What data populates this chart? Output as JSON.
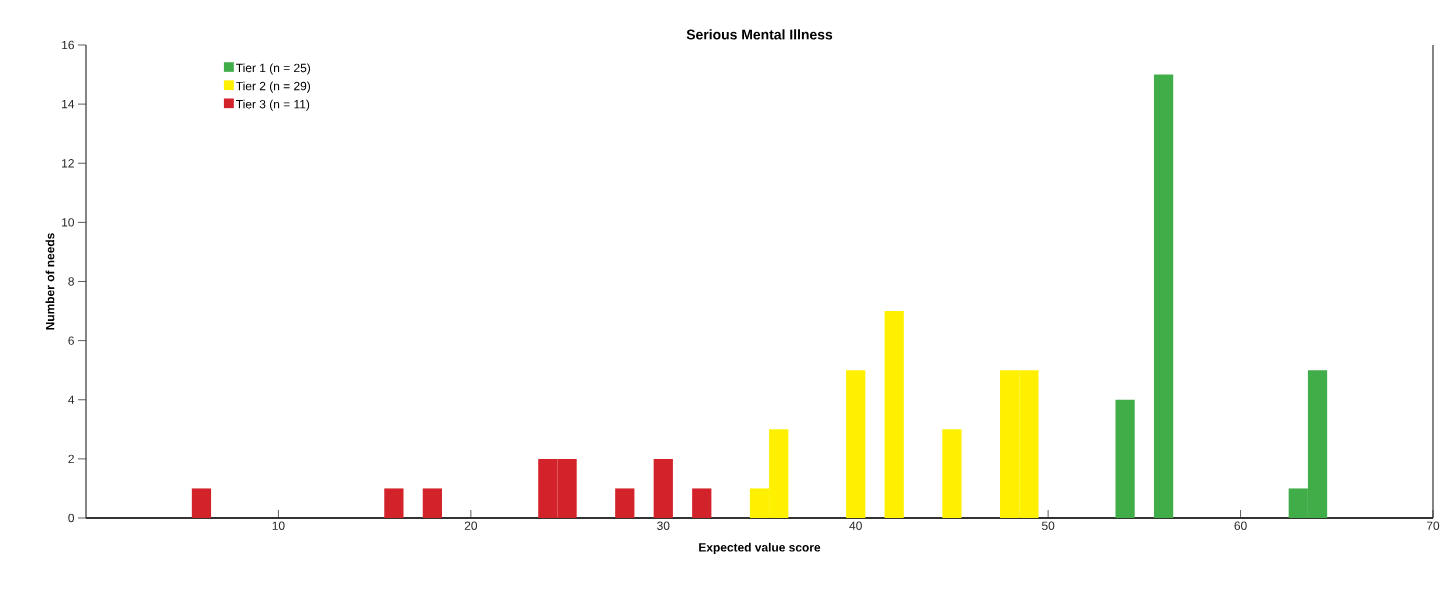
{
  "chart_data": {
    "type": "bar",
    "title": "Serious Mental Illness",
    "xlabel": "Expected value score",
    "ylabel": "Number of needs",
    "series": [
      {
        "name": "Tier 1 (n = 25)",
        "color": "#41ad49",
        "x": [
          54,
          56,
          63,
          64
        ],
        "values": [
          4,
          15,
          1,
          5
        ]
      },
      {
        "name": "Tier 2 (n = 29)",
        "color": "#fff000",
        "x": [
          35,
          36,
          40,
          42,
          45,
          48,
          49
        ],
        "values": [
          1,
          3,
          5,
          7,
          3,
          5,
          5
        ]
      },
      {
        "name": "Tier 3 (n = 11)",
        "color": "#d2232a",
        "x": [
          6,
          16,
          18,
          24,
          25,
          28,
          30,
          32
        ],
        "values": [
          1,
          1,
          1,
          2,
          2,
          1,
          2,
          1
        ]
      }
    ],
    "xlim": [
      0,
      70
    ],
    "ylim": [
      0,
      16
    ],
    "xticks": [
      10,
      20,
      30,
      40,
      50,
      60,
      70
    ],
    "yticks": [
      0,
      2,
      4,
      6,
      8,
      10,
      12,
      14,
      16
    ],
    "legend": "top left",
    "grid": false
  }
}
